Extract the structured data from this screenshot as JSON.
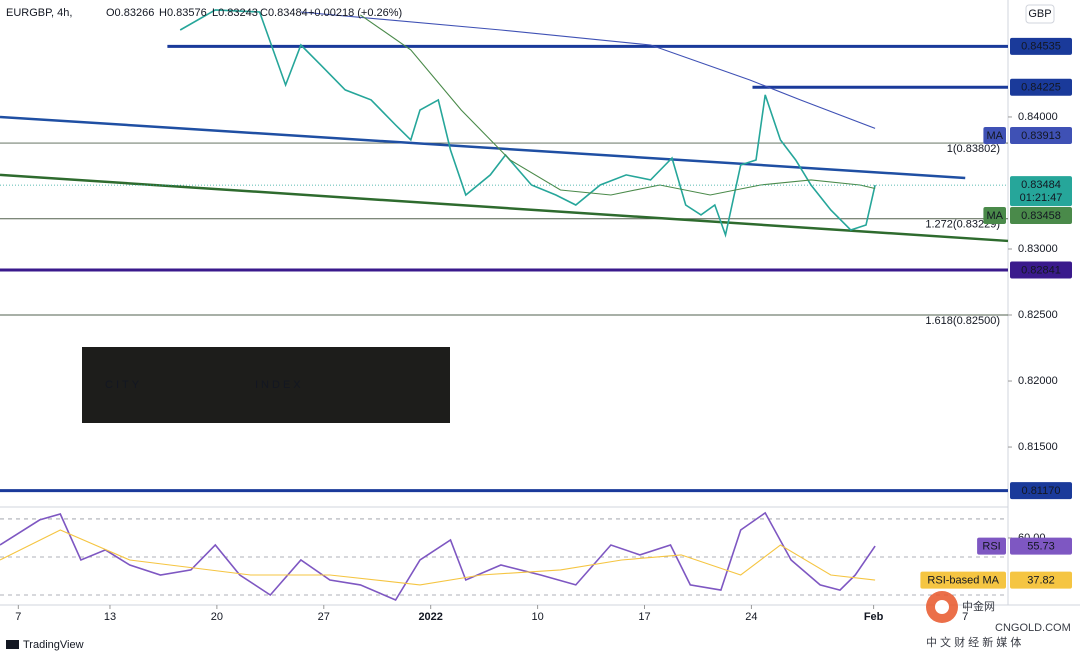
{
  "header": {
    "symbol": "EURGBP, 4h,",
    "ohlc": [
      "O0.83266",
      "H0.83576",
      "L0.83243",
      "C0.83484",
      "+0.00218 (+0.26%)"
    ],
    "currency": "GBP"
  },
  "logo": [
    "CITY",
    "INDEX"
  ],
  "footer": "TradingView",
  "watermark": {
    "name": "中金网",
    "site": "CNGOLD.COM",
    "tagline": "中 文 财 经 新 媒 体"
  },
  "chart_data": [
    {
      "type": "line",
      "xlim": [
        5.8,
        71.8
      ],
      "ylim": [
        0.81061,
        0.84848
      ],
      "yticks": [
        {
          "value": 0.84,
          "label": "0.84000"
        },
        {
          "value": 0.83,
          "label": "0.83000"
        },
        {
          "value": 0.825,
          "label": "0.82500"
        },
        {
          "value": 0.82,
          "label": "0.82000"
        },
        {
          "value": 0.815,
          "label": "0.81500"
        }
      ],
      "series": [
        {
          "color": "#26a69a",
          "x": [
            17.6,
            19.9,
            22.8,
            24.5,
            25.5,
            26.8,
            28.4,
            30.1,
            31.7,
            32.7,
            33.3,
            34.5,
            35.3,
            36.3,
            37.9,
            38.9,
            40.6,
            42.2,
            43.5,
            45.1,
            46.8,
            48.4,
            49.8,
            50.7,
            51.7,
            52.6,
            53.3,
            54.3,
            55.3,
            55.9,
            56.9,
            57.9,
            58.9,
            60.2,
            61.5,
            62.5,
            63.1
          ],
          "values": [
            0.84659,
            0.84811,
            0.84795,
            0.84242,
            0.84545,
            0.84394,
            0.84205,
            0.84129,
            0.83939,
            0.83826,
            0.84053,
            0.84129,
            0.8375,
            0.83409,
            0.83561,
            0.83712,
            0.83485,
            0.83409,
            0.83333,
            0.83485,
            0.83561,
            0.83523,
            0.83689,
            0.83333,
            0.83258,
            0.83333,
            0.83106,
            0.83636,
            0.83674,
            0.84167,
            0.83826,
            0.83674,
            0.83485,
            0.83295,
            0.83144,
            0.83182,
            0.83484
          ]
        },
        {
          "name": "MA",
          "color": "#3f51b5",
          "x": [
            25.5,
            38.6,
            48.4,
            54.9,
            58.2,
            63.1
          ],
          "values": [
            0.84795,
            0.84659,
            0.84545,
            0.8428,
            0.84129,
            0.83913
          ]
        },
        {
          "name": "MA",
          "color": "#4a8a4a",
          "x": [
            29.4,
            32.7,
            36.0,
            39.2,
            42.5,
            45.8,
            49.0,
            52.3,
            55.6,
            58.9,
            62.1,
            63.1
          ],
          "values": [
            0.84773,
            0.84508,
            0.84053,
            0.83674,
            0.83447,
            0.83409,
            0.83485,
            0.83409,
            0.83485,
            0.83523,
            0.83485,
            0.83458
          ]
        }
      ],
      "last_price_countdown": "01:21:47",
      "levels": [
        {
          "value": 0.84535,
          "label": "0.84535",
          "from": 16.76,
          "color": "#1a3a9a"
        },
        {
          "value": 0.84225,
          "label": "0.84225",
          "from": 55.07,
          "color": "#1a3a9a"
        },
        {
          "value": 0.82841,
          "label": "0.82841",
          "color": "#3a1a8c"
        },
        {
          "value": 0.8117,
          "label": "0.81170",
          "color": "#1a3a9a"
        }
      ],
      "fib_levels": [
        {
          "value": 0.83802,
          "label": "1(0.83802)"
        },
        {
          "value": 0.83229,
          "label": "1.272(0.83229)"
        },
        {
          "value": 0.825,
          "label": "1.618(0.82500)"
        }
      ],
      "trendlines": [
        {
          "x": [
            5.8,
            69
          ],
          "values": [
            0.84,
            0.83538
          ],
          "color": "#1f4fa3"
        },
        {
          "x": [
            5.8,
            71.8
          ],
          "values": [
            0.83561,
            0.83061
          ],
          "color": "#2e6b2e"
        }
      ]
    },
    {
      "type": "line",
      "xlim": [
        5.8,
        71.8
      ],
      "ylim": [
        25.8,
        74.7
      ],
      "yticks": [
        {
          "value": 60,
          "label": "60.00"
        }
      ],
      "band_lines": [
        70,
        50,
        30
      ],
      "xticks": [
        7,
        13,
        20,
        27,
        {
          "value": 34,
          "label": "2022"
        },
        {
          "value": 41,
          "label": "10"
        },
        {
          "value": 48,
          "label": "17"
        },
        {
          "value": 55,
          "label": "24"
        },
        {
          "value": 63,
          "label": "Feb"
        },
        {
          "value": 69,
          "label": "7"
        }
      ],
      "series": [
        {
          "name": "RSI",
          "color": "#7e57c2",
          "x": [
            5.8,
            8.4,
            9.75,
            11.1,
            12.7,
            14.3,
            16.3,
            18.3,
            19.9,
            21.5,
            23.5,
            25.5,
            27.4,
            29.4,
            31.7,
            33.3,
            35.3,
            36.3,
            38.6,
            41.2,
            43.5,
            45.8,
            47.7,
            49.7,
            51.0,
            53.0,
            54.3,
            55.9,
            57.6,
            59.5,
            60.8,
            61.8,
            63.1
          ],
          "values": [
            56.3,
            69.5,
            72.6,
            48.4,
            53.7,
            45.8,
            40.5,
            43.2,
            56.3,
            40.5,
            30.0,
            48.4,
            37.9,
            35.3,
            27.4,
            48.4,
            58.9,
            37.9,
            45.8,
            40.5,
            35.3,
            56.3,
            51.1,
            56.3,
            35.3,
            32.6,
            64.2,
            73.2,
            48.4,
            35.3,
            32.6,
            40.5,
            55.73
          ]
        },
        {
          "name": "RSI-based MA",
          "color": "#f5c542",
          "x": [
            5.8,
            9.75,
            14.3,
            22.2,
            27.4,
            33.3,
            37.3,
            42.5,
            46.5,
            50.4,
            54.3,
            56.9,
            60.2,
            63.1
          ],
          "values": [
            48.4,
            64.2,
            48.4,
            40.5,
            40.5,
            35.3,
            40.5,
            43.2,
            48.4,
            51.1,
            40.5,
            56.3,
            40.5,
            37.82
          ]
        }
      ]
    }
  ]
}
